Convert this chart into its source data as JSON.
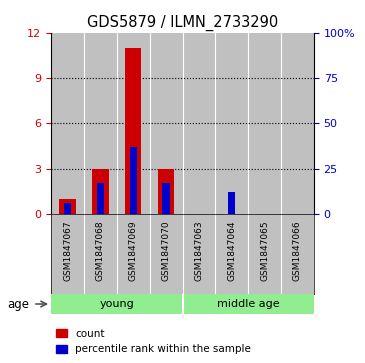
{
  "title": "GDS5879 / ILMN_2733290",
  "samples": [
    "GSM1847067",
    "GSM1847068",
    "GSM1847069",
    "GSM1847070",
    "GSM1847063",
    "GSM1847064",
    "GSM1847065",
    "GSM1847066"
  ],
  "count_values": [
    1,
    3,
    11,
    3,
    0,
    0,
    0,
    0
  ],
  "percentile_values": [
    6,
    17,
    37,
    17,
    0,
    12,
    0,
    0
  ],
  "groups": [
    {
      "label": "young",
      "start": 0,
      "end": 4
    },
    {
      "label": "middle age",
      "start": 4,
      "end": 8
    }
  ],
  "left_ylim": [
    0,
    12
  ],
  "left_yticks": [
    0,
    3,
    6,
    9,
    12
  ],
  "right_ylim": [
    0,
    100
  ],
  "right_yticks": [
    0,
    25,
    50,
    75,
    100
  ],
  "right_yticklabels": [
    "0",
    "25",
    "50",
    "75",
    "100%"
  ],
  "bar_color_red": "#cc0000",
  "bar_color_blue": "#0000cc",
  "group_color": "#90ee90",
  "sample_bg_color": "#c0c0c0",
  "legend_count": "count",
  "legend_percentile": "percentile rank within the sample",
  "age_label": "age"
}
